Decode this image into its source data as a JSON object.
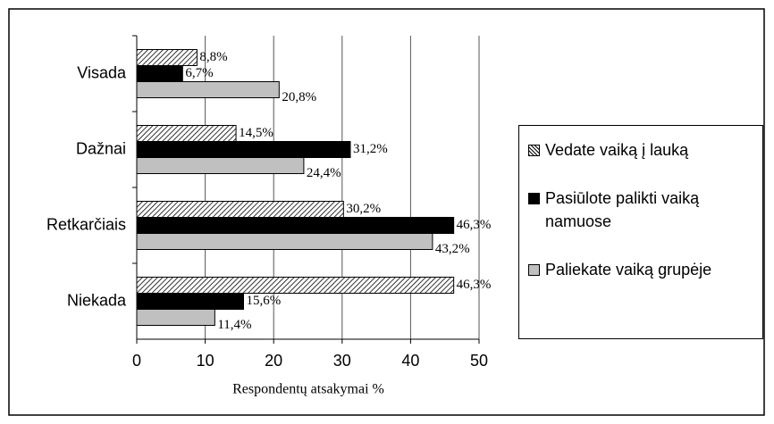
{
  "chart_data": {
    "type": "bar",
    "orientation": "horizontal",
    "x_label": "Respondentų atsakymai %",
    "categories": [
      "Visada",
      "Dažnai",
      "Retkarčiais",
      "Niekada"
    ],
    "series": [
      {
        "name": "Vedate vaiką į lauką",
        "color": "hatched",
        "values": [
          8.8,
          14.5,
          30.2,
          46.3
        ],
        "value_labels": [
          "8,8%",
          "14,5%",
          "30,2%",
          "46,3%"
        ]
      },
      {
        "name": "Pasiūlote palikti vaiką namuose",
        "color": "#000000",
        "values": [
          6.7,
          31.2,
          46.3,
          15.6
        ],
        "value_labels": [
          "6,7%",
          "31,2%",
          "46,3%",
          "15,6%"
        ]
      },
      {
        "name": "Paliekate vaiką grupėje",
        "color": "#c0c0c0",
        "values": [
          20.8,
          24.4,
          43.2,
          11.4
        ],
        "value_labels": [
          "20,8%",
          "24,4%",
          "43,2%",
          "11,4%"
        ]
      }
    ],
    "xlim": [
      0,
      50
    ],
    "xticks": [
      0,
      10,
      20,
      30,
      40,
      50
    ],
    "grid": true,
    "legend": "right"
  }
}
